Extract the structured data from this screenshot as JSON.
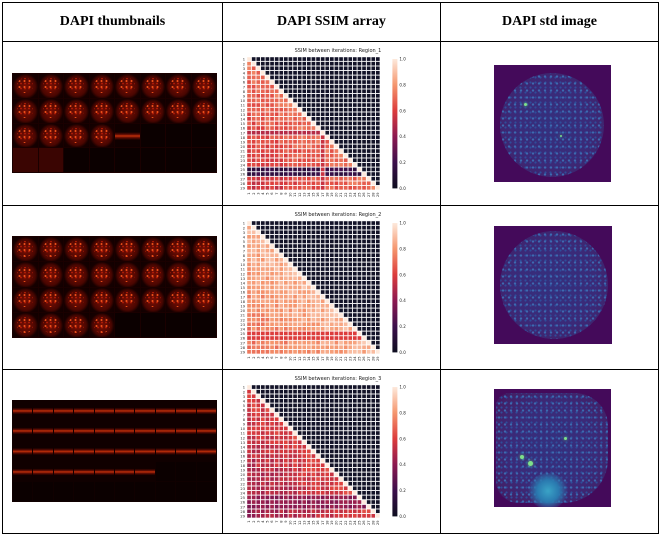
{
  "headers": {
    "thumbnails": "DAPI thumbnails",
    "ssim": "DAPI SSIM array",
    "std": "DAPI std image"
  },
  "rows": [
    {
      "ssim_title": "SSIM between iterations: Region_1"
    },
    {
      "ssim_title": "SSIM between iterations: Region_2"
    },
    {
      "ssim_title": "SSIM between iterations: Region_3"
    }
  ],
  "colorbar": {
    "ticks": [
      "1.0",
      "0.8",
      "0.6",
      "0.4",
      "0.2",
      "0.0"
    ]
  },
  "axis_ticks": [
    "1",
    "2",
    "3",
    "4",
    "5",
    "6",
    "7",
    "8",
    "9",
    "10",
    "11",
    "12",
    "13",
    "14",
    "15",
    "16",
    "17",
    "18",
    "19",
    "20",
    "21",
    "22",
    "23",
    "24",
    "25",
    "26",
    "27",
    "28",
    "29"
  ],
  "colors": {
    "heat_high": "#fde9dc",
    "heat_low": "#0d0d1f",
    "upper_triangle": "#131328",
    "std_background": "#440a5a"
  }
}
